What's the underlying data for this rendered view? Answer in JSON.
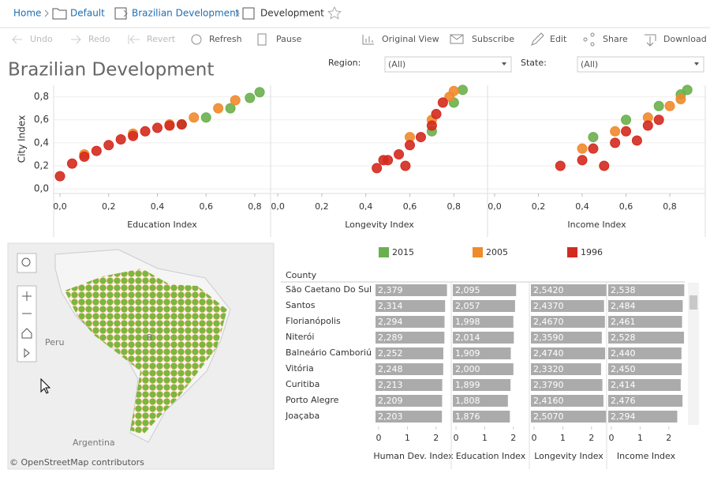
{
  "breadcrumb": [
    "Home",
    "Default",
    "Brazilian Development",
    "Development"
  ],
  "toolbar": [
    "Undo",
    "Redo",
    "Revert",
    "Refresh",
    "Pause",
    "Original View",
    "Subscribe",
    "Edit",
    "Share",
    "Download"
  ],
  "title": "Brazilian Development",
  "filters": [
    {
      "label": "Region:",
      "value": "(All)"
    },
    {
      "label": "State:",
      "value": "(All)"
    }
  ],
  "chart_data": {
    "type": "scatter",
    "ylabel": "City Index",
    "ylim": [
      -0.04,
      0.9
    ],
    "yticks": [
      {
        "value": 0,
        "label": "0,0"
      },
      {
        "value": 0.2,
        "label": "0,2"
      },
      {
        "value": 0.4,
        "label": "0,4"
      },
      {
        "value": 0.6,
        "label": "0,6"
      },
      {
        "value": 0.8,
        "label": "0,8"
      }
    ],
    "xticks": [
      {
        "value": 0,
        "label": "0,0"
      },
      {
        "value": 0.2,
        "label": "0,2"
      },
      {
        "value": 0.4,
        "label": "0,4"
      },
      {
        "value": 0.6,
        "label": "0,6"
      },
      {
        "value": 0.8,
        "label": "0,8"
      }
    ],
    "legend": [
      {
        "name": "2015",
        "color": "#6ab04c"
      },
      {
        "name": "2005",
        "color": "#f08a2c"
      },
      {
        "name": "1996",
        "color": "#d42a1e"
      }
    ],
    "panels": [
      {
        "xlabel": "Education Index",
        "xlim": [
          -0.026,
          0.865
        ],
        "series": [
          {
            "x": [
              0.5,
              0.6,
              0.7,
              0.78,
              0.82
            ],
            "y": [
              0.56,
              0.62,
              0.7,
              0.79,
              0.84
            ]
          },
          {
            "x": [
              0.1,
              0.3,
              0.45,
              0.55,
              0.65,
              0.72
            ],
            "y": [
              0.3,
              0.48,
              0.56,
              0.62,
              0.7,
              0.77
            ]
          },
          {
            "x": [
              0.0,
              0.05,
              0.1,
              0.15,
              0.2,
              0.25,
              0.3,
              0.35,
              0.4,
              0.45,
              0.5
            ],
            "y": [
              0.11,
              0.22,
              0.28,
              0.33,
              0.38,
              0.43,
              0.46,
              0.5,
              0.53,
              0.55,
              0.56
            ]
          }
        ]
      },
      {
        "xlabel": "Longevity Index",
        "xlim": [
          -0.029,
          0.953
        ],
        "series": [
          {
            "x": [
              0.7,
              0.8,
              0.84
            ],
            "y": [
              0.5,
              0.75,
              0.86
            ]
          },
          {
            "x": [
              0.6,
              0.7,
              0.78,
              0.8
            ],
            "y": [
              0.45,
              0.6,
              0.8,
              0.85
            ]
          },
          {
            "x": [
              0.45,
              0.5,
              0.55,
              0.6,
              0.65,
              0.7,
              0.72,
              0.75,
              0.48,
              0.58
            ],
            "y": [
              0.18,
              0.25,
              0.3,
              0.38,
              0.45,
              0.55,
              0.65,
              0.75,
              0.25,
              0.2
            ]
          }
        ]
      },
      {
        "xlabel": "Income Index",
        "xlim": [
          -0.029,
          0.962
        ],
        "series": [
          {
            "x": [
              0.45,
              0.6,
              0.75,
              0.85,
              0.88
            ],
            "y": [
              0.45,
              0.6,
              0.72,
              0.82,
              0.86
            ]
          },
          {
            "x": [
              0.4,
              0.55,
              0.7,
              0.8,
              0.85
            ],
            "y": [
              0.35,
              0.5,
              0.62,
              0.72,
              0.78
            ]
          },
          {
            "x": [
              0.3,
              0.4,
              0.45,
              0.55,
              0.6,
              0.7,
              0.75,
              0.5,
              0.65
            ],
            "y": [
              0.2,
              0.25,
              0.35,
              0.4,
              0.5,
              0.55,
              0.6,
              0.2,
              0.42
            ]
          }
        ]
      }
    ]
  },
  "map": {
    "labels": [
      "Peru",
      "Argentina",
      "B"
    ],
    "attribution": "© OpenStreetMap contributors"
  },
  "table": {
    "header": "County",
    "counties": [
      "São Caetano Do Sul",
      "Santos",
      "Florianópolis",
      "Niterói",
      "Balneário Camboriú",
      "Vitória",
      "Curitiba",
      "Porto Alegre",
      "Joaçaba"
    ],
    "xlim": [
      0,
      2.5
    ],
    "xticks": [
      0,
      1,
      2
    ],
    "columns": [
      {
        "name": "Human Dev. Index",
        "values": [
          2.379,
          2.314,
          2.294,
          2.289,
          2.252,
          2.248,
          2.213,
          2.209,
          2.203
        ],
        "value_labels": [
          "2,379",
          "2,314",
          "2,294",
          "2,289",
          "2,252",
          "2,248",
          "2,213",
          "2,209",
          "2,203"
        ]
      },
      {
        "name": "Education Index",
        "values": [
          2.095,
          2.057,
          1.998,
          2.014,
          1.909,
          2.0,
          1.899,
          1.808,
          1.876
        ],
        "value_labels": [
          "2,095",
          "2,057",
          "1,998",
          "2,014",
          "1,909",
          "2,000",
          "1,899",
          "1,808",
          "1,876"
        ]
      },
      {
        "name": "Longevity Index",
        "values": [
          2.542,
          2.437,
          2.467,
          2.359,
          2.474,
          2.332,
          2.379,
          2.416,
          2.507
        ],
        "value_labels": [
          "2,5420",
          "2,4370",
          "2,4670",
          "2,3590",
          "2,4740",
          "2,3320",
          "2,3790",
          "2,4160",
          "2,5070"
        ]
      },
      {
        "name": "Income Index",
        "values": [
          2.538,
          2.484,
          2.461,
          2.528,
          2.44,
          2.45,
          2.414,
          2.476,
          2.294
        ],
        "value_labels": [
          "2,538",
          "2,484",
          "2,461",
          "2,528",
          "2,440",
          "2,450",
          "2,414",
          "2,476",
          "2,294"
        ]
      }
    ]
  }
}
